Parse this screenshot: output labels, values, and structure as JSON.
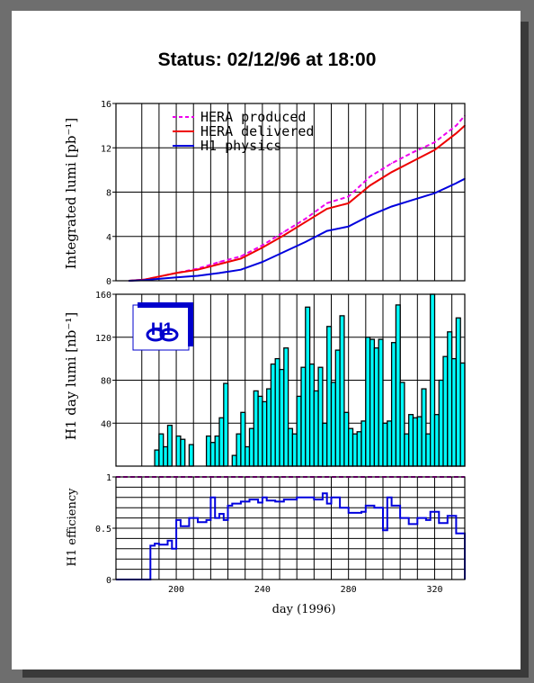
{
  "title": "Status: 02/12/96 at 18:00",
  "chart_data": [
    {
      "type": "line",
      "ylabel": "Integrated lumi [pb⁻¹]",
      "ylim": [
        0,
        16
      ],
      "yticks": [
        "0",
        "4",
        "8",
        "12",
        "16"
      ],
      "xlim": [
        172,
        334
      ],
      "grid": true,
      "legend_position": "top-left",
      "series": [
        {
          "name": "HERA produced",
          "color": "#ee00ee",
          "style": "dashed",
          "x": [
            178,
            185,
            190,
            200,
            210,
            220,
            230,
            240,
            250,
            260,
            270,
            280,
            290,
            300,
            310,
            320,
            330,
            334
          ],
          "values": [
            0.0,
            0.1,
            0.3,
            0.7,
            1.1,
            1.7,
            2.2,
            3.2,
            4.4,
            5.6,
            7.0,
            7.6,
            9.4,
            10.6,
            11.6,
            12.5,
            14.0,
            14.9
          ]
        },
        {
          "name": "HERA delivered",
          "color": "#ee0000",
          "style": "solid",
          "x": [
            178,
            185,
            190,
            200,
            210,
            220,
            230,
            240,
            250,
            260,
            270,
            280,
            290,
            300,
            310,
            320,
            330,
            334
          ],
          "values": [
            0.0,
            0.1,
            0.3,
            0.7,
            1.0,
            1.5,
            2.0,
            3.0,
            4.1,
            5.3,
            6.5,
            7.0,
            8.6,
            9.8,
            10.8,
            11.8,
            13.3,
            14.0
          ]
        },
        {
          "name": "H1 physics",
          "color": "#0000dd",
          "style": "solid",
          "x": [
            178,
            185,
            190,
            200,
            210,
            220,
            230,
            240,
            250,
            260,
            270,
            280,
            290,
            300,
            310,
            320,
            330,
            334
          ],
          "values": [
            0.0,
            0.05,
            0.15,
            0.3,
            0.45,
            0.7,
            1.0,
            1.7,
            2.6,
            3.5,
            4.5,
            4.9,
            5.9,
            6.7,
            7.3,
            7.9,
            8.8,
            9.2
          ]
        }
      ]
    },
    {
      "type": "bar",
      "ylabel": "H1 day lumi [nb⁻¹]",
      "ylim": [
        0,
        160
      ],
      "yticks": [
        "40",
        "80",
        "120",
        "160"
      ],
      "fill_color": "#00ffff",
      "x": [
        188,
        190,
        192,
        194,
        196,
        198,
        200,
        202,
        204,
        206,
        208,
        210,
        212,
        214,
        216,
        218,
        220,
        222,
        224,
        226,
        228,
        230,
        232,
        234,
        236,
        238,
        240,
        242,
        244,
        246,
        248,
        250,
        252,
        254,
        256,
        258,
        260,
        262,
        264,
        266,
        268,
        270,
        272,
        274,
        276,
        278,
        280,
        282,
        284,
        286,
        288,
        290,
        292,
        294,
        296,
        298,
        300,
        302,
        304,
        306,
        308,
        310,
        312,
        314,
        316,
        318,
        320,
        322,
        324,
        326,
        328,
        330,
        332,
        334
      ],
      "values": [
        0,
        15,
        30,
        18,
        38,
        0,
        28,
        25,
        0,
        20,
        0,
        0,
        0,
        28,
        22,
        28,
        45,
        77,
        0,
        10,
        30,
        50,
        18,
        35,
        70,
        65,
        60,
        72,
        95,
        100,
        90,
        110,
        35,
        30,
        65,
        92,
        148,
        95,
        70,
        92,
        40,
        130,
        78,
        108,
        140,
        50,
        35,
        30,
        32,
        42,
        120,
        118,
        110,
        118,
        40,
        42,
        115,
        150,
        78,
        30,
        48,
        45,
        46,
        72,
        30,
        160,
        48,
        80,
        102,
        125,
        100,
        138,
        96,
        0
      ],
      "logo_text": "H1"
    },
    {
      "type": "line",
      "ylabel": "H1 efficiency",
      "ylim": [
        0,
        1
      ],
      "yticks": [
        "0",
        "0.5",
        "1"
      ],
      "xlabel": "day (1996)",
      "xticks": [
        "200",
        "240",
        "280",
        "320"
      ],
      "reference_line": 1,
      "series": [
        {
          "name": "",
          "color": "#0000dd",
          "style": "step",
          "x": [
            172,
            188,
            190,
            192,
            196,
            198,
            200,
            202,
            206,
            210,
            214,
            216,
            218,
            220,
            222,
            224,
            226,
            230,
            234,
            238,
            240,
            242,
            246,
            250,
            256,
            260,
            264,
            268,
            270,
            272,
            276,
            280,
            284,
            286,
            288,
            292,
            296,
            298,
            300,
            304,
            308,
            312,
            316,
            318,
            322,
            326,
            330,
            334
          ],
          "values": [
            0,
            0.33,
            0.35,
            0.34,
            0.38,
            0.3,
            0.58,
            0.52,
            0.6,
            0.56,
            0.58,
            0.8,
            0.6,
            0.64,
            0.58,
            0.72,
            0.74,
            0.76,
            0.78,
            0.75,
            0.8,
            0.77,
            0.76,
            0.78,
            0.8,
            0.8,
            0.78,
            0.84,
            0.74,
            0.8,
            0.7,
            0.65,
            0.65,
            0.66,
            0.72,
            0.7,
            0.48,
            0.8,
            0.72,
            0.6,
            0.54,
            0.6,
            0.58,
            0.66,
            0.55,
            0.62,
            0.45,
            0
          ]
        }
      ]
    }
  ]
}
